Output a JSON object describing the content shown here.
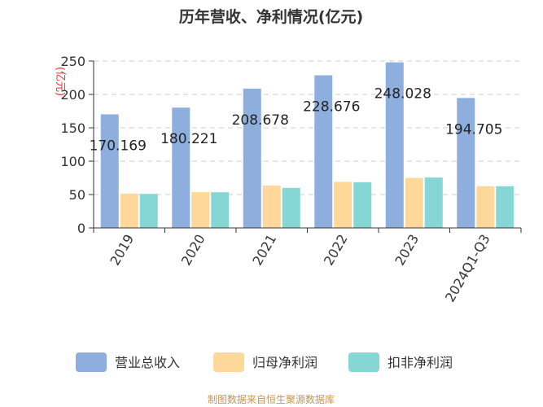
{
  "chart_data": {
    "type": "bar",
    "title": "历年营收、净利情况(亿元)",
    "unit_label": "(亿元)",
    "categories": [
      "2019",
      "2020",
      "2021",
      "2022",
      "2023",
      "2024Q1-Q3"
    ],
    "series": [
      {
        "name": "营业总收入",
        "color": "#8eaedd",
        "values": [
          170.169,
          180.221,
          208.678,
          228.676,
          248.028,
          194.705
        ]
      },
      {
        "name": "归母净利润",
        "color": "#fdd89a",
        "values": [
          51.5,
          53.5,
          63.5,
          69.0,
          75.0,
          62.5
        ]
      },
      {
        "name": "扣非净利润",
        "color": "#86d6d6",
        "values": [
          51.0,
          53.5,
          60.0,
          68.5,
          75.5,
          62.5
        ]
      }
    ],
    "data_labels": [
      "170.169",
      "180.221",
      "208.678",
      "228.676",
      "248.028",
      "194.705"
    ],
    "yticks": [
      "0",
      "50",
      "100",
      "150",
      "200",
      "250"
    ],
    "ylim": [
      0,
      250
    ],
    "grid": true,
    "legend_position": "bottom"
  },
  "source_text": "制图数据来自恒生聚源数据库"
}
